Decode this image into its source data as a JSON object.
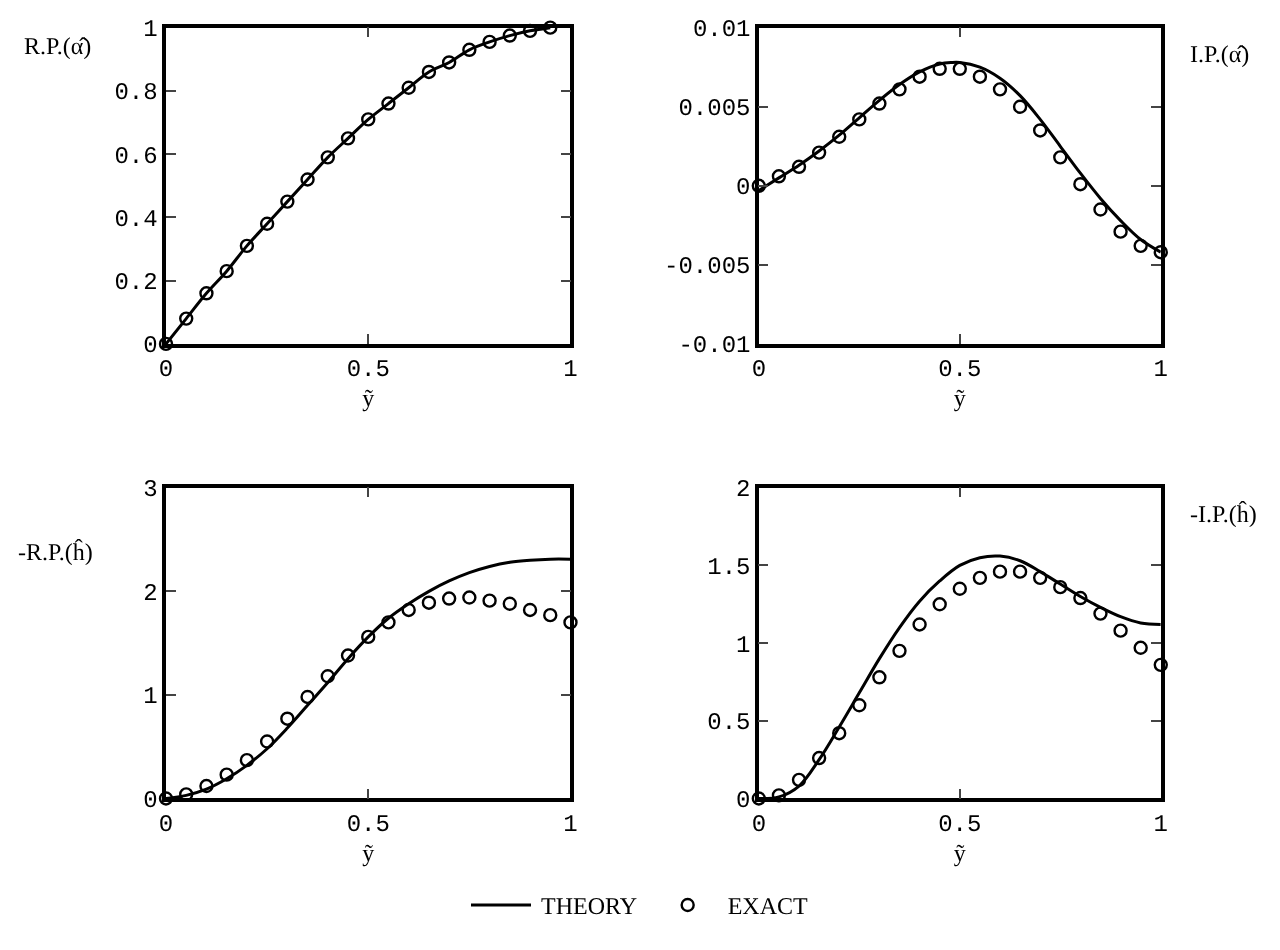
{
  "chart_data": [
    {
      "type": "line",
      "ylabel": "R.P.(α̂)",
      "xlabel": "ỹ",
      "xlim": [
        0,
        1
      ],
      "xticks": [
        0,
        0.5,
        1
      ],
      "ylim": [
        0,
        1
      ],
      "yticks": [
        0,
        0.2,
        0.4,
        0.6,
        0.8,
        1
      ],
      "legend": "bottom",
      "series": [
        {
          "name": "THEORY",
          "color": "#000000",
          "x": [
            0,
            0.05,
            0.1,
            0.15,
            0.2,
            0.25,
            0.3,
            0.35,
            0.4,
            0.45,
            0.5,
            0.55,
            0.6,
            0.65,
            0.7,
            0.75,
            0.8,
            0.85,
            0.9,
            0.95
          ],
          "values": [
            0,
            0.08,
            0.16,
            0.23,
            0.31,
            0.38,
            0.45,
            0.52,
            0.59,
            0.65,
            0.71,
            0.76,
            0.81,
            0.86,
            0.89,
            0.93,
            0.955,
            0.975,
            0.99,
            1.0
          ]
        },
        {
          "name": "EXACT",
          "type": "scatter",
          "marker": "circle",
          "color": "#000000",
          "x": [
            0,
            0.05,
            0.1,
            0.15,
            0.2,
            0.25,
            0.3,
            0.35,
            0.4,
            0.45,
            0.5,
            0.55,
            0.6,
            0.65,
            0.7,
            0.75,
            0.8,
            0.85,
            0.9,
            0.95
          ],
          "values": [
            0,
            0.08,
            0.16,
            0.23,
            0.31,
            0.38,
            0.45,
            0.52,
            0.59,
            0.65,
            0.71,
            0.76,
            0.81,
            0.86,
            0.89,
            0.93,
            0.955,
            0.975,
            0.99,
            1.0
          ]
        }
      ]
    },
    {
      "type": "line",
      "ylabel": "I.P.(α̂)",
      "xlabel": "ỹ",
      "xlim": [
        0,
        1
      ],
      "xticks": [
        0,
        0.5,
        1
      ],
      "ylim": [
        -0.01,
        0.01
      ],
      "yticks": [
        -0.01,
        -0.005,
        0,
        0.005,
        0.01
      ],
      "series": [
        {
          "color": "#000000",
          "x": [
            0,
            0.05,
            0.1,
            0.15,
            0.2,
            0.25,
            0.3,
            0.35,
            0.4,
            0.45,
            0.48,
            0.5,
            0.55,
            0.6,
            0.65,
            0.7,
            0.75,
            0.8,
            0.85,
            0.9,
            0.95,
            1
          ],
          "values": [
            -0.0003,
            0.0005,
            0.0013,
            0.0022,
            0.0032,
            0.0043,
            0.0054,
            0.0064,
            0.0072,
            0.0077,
            0.0078,
            0.0078,
            0.0075,
            0.0068,
            0.0057,
            0.0042,
            0.0025,
            0.0008,
            -0.0008,
            -0.0022,
            -0.0034,
            -0.0042
          ]
        },
        {
          "type": "scatter",
          "marker": "circle",
          "color": "#000000",
          "x": [
            0,
            0.05,
            0.1,
            0.15,
            0.2,
            0.25,
            0.3,
            0.35,
            0.4,
            0.45,
            0.5,
            0.55,
            0.6,
            0.65,
            0.7,
            0.75,
            0.8,
            0.85,
            0.9,
            0.95,
            1
          ],
          "values": [
            0,
            0.0006,
            0.0012,
            0.0021,
            0.0031,
            0.0042,
            0.0052,
            0.0061,
            0.0069,
            0.0074,
            0.0074,
            0.0069,
            0.0061,
            0.005,
            0.0035,
            0.0018,
            0.0001,
            -0.0015,
            -0.0029,
            -0.0038,
            -0.0042
          ]
        }
      ]
    },
    {
      "type": "line",
      "ylabel": "-R.P.(ĥ)",
      "xlabel": "ỹ",
      "xlim": [
        0,
        1
      ],
      "xticks": [
        0,
        0.5,
        1
      ],
      "ylim": [
        0,
        3
      ],
      "yticks": [
        0,
        1,
        2,
        3
      ],
      "series": [
        {
          "color": "#000000",
          "x": [
            0,
            0.05,
            0.1,
            0.15,
            0.2,
            0.25,
            0.3,
            0.35,
            0.4,
            0.45,
            0.5,
            0.55,
            0.6,
            0.65,
            0.7,
            0.75,
            0.8,
            0.85,
            0.9,
            0.95,
            1
          ],
          "values": [
            0,
            0.03,
            0.09,
            0.19,
            0.32,
            0.48,
            0.68,
            0.9,
            1.12,
            1.35,
            1.56,
            1.74,
            1.88,
            2.0,
            2.1,
            2.18,
            2.24,
            2.28,
            2.3,
            2.31,
            2.31
          ]
        },
        {
          "type": "scatter",
          "marker": "circle",
          "color": "#000000",
          "x": [
            0,
            0.05,
            0.1,
            0.15,
            0.2,
            0.25,
            0.3,
            0.35,
            0.4,
            0.45,
            0.5,
            0.55,
            0.6,
            0.65,
            0.7,
            0.75,
            0.8,
            0.85,
            0.9,
            0.95,
            1
          ],
          "values": [
            0,
            0.04,
            0.12,
            0.23,
            0.37,
            0.55,
            0.77,
            0.98,
            1.18,
            1.38,
            1.56,
            1.7,
            1.82,
            1.89,
            1.93,
            1.94,
            1.91,
            1.88,
            1.82,
            1.77,
            1.7
          ]
        }
      ]
    },
    {
      "type": "line",
      "ylabel": "-I.P.(ĥ)",
      "xlabel": "ỹ",
      "xlim": [
        0,
        1
      ],
      "xticks": [
        0,
        0.5,
        1
      ],
      "ylim": [
        0,
        2
      ],
      "yticks": [
        0,
        0.5,
        1,
        1.5,
        2
      ],
      "series": [
        {
          "color": "#000000",
          "x": [
            0,
            0.05,
            0.1,
            0.15,
            0.2,
            0.25,
            0.3,
            0.35,
            0.4,
            0.45,
            0.5,
            0.55,
            0.6,
            0.65,
            0.7,
            0.75,
            0.8,
            0.85,
            0.9,
            0.95,
            1
          ],
          "values": [
            0,
            0.01,
            0.08,
            0.25,
            0.46,
            0.68,
            0.9,
            1.1,
            1.27,
            1.4,
            1.5,
            1.55,
            1.56,
            1.53,
            1.46,
            1.38,
            1.3,
            1.23,
            1.17,
            1.13,
            1.12
          ]
        },
        {
          "type": "scatter",
          "marker": "circle",
          "color": "#000000",
          "x": [
            0,
            0.05,
            0.1,
            0.15,
            0.2,
            0.25,
            0.3,
            0.35,
            0.4,
            0.45,
            0.5,
            0.55,
            0.6,
            0.65,
            0.7,
            0.75,
            0.8,
            0.85,
            0.9,
            0.95,
            1
          ],
          "values": [
            0,
            0.02,
            0.12,
            0.26,
            0.42,
            0.6,
            0.78,
            0.95,
            1.12,
            1.25,
            1.35,
            1.42,
            1.46,
            1.46,
            1.42,
            1.36,
            1.29,
            1.19,
            1.08,
            0.97,
            0.86
          ]
        }
      ]
    }
  ]
}
